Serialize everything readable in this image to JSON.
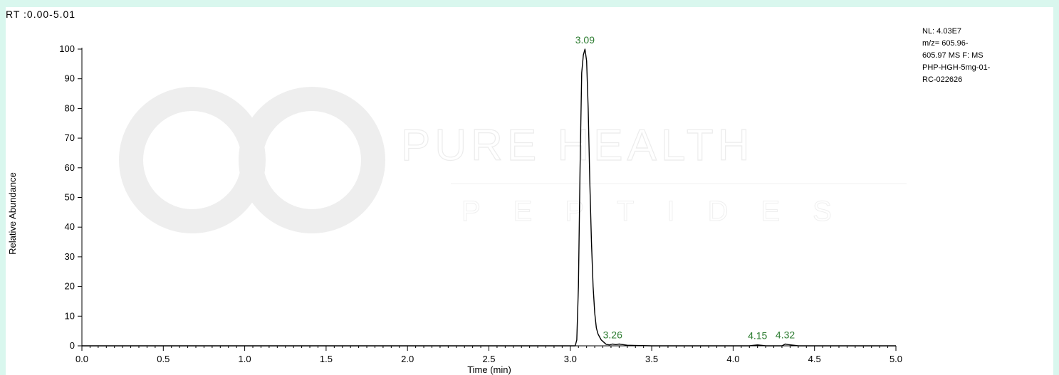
{
  "range_label": "RT :0.00-5.01",
  "info_lines": [
    "NL: 4.03E7",
    "m/z= 605.96-",
    "605.97 MS  F: MS",
    "PHP-HGH-5mg-01-",
    "RC-022626"
  ],
  "watermark": {
    "line1": "PURE HEALTH",
    "line2": "PEPTIDES"
  },
  "colors": {
    "trace": "#000000",
    "peak_label": "#2e7d32",
    "background": "#d9f7ee",
    "watermark": "#ececec"
  },
  "chart_data": {
    "type": "line",
    "xlabel": "Time (min)",
    "ylabel": "Relative Abundance",
    "xlim": [
      0.0,
      5.0
    ],
    "ylim": [
      0,
      100
    ],
    "x_ticks": [
      "0.0",
      "0.5",
      "1.0",
      "1.5",
      "2.0",
      "2.5",
      "3.0",
      "3.5",
      "4.0",
      "4.5",
      "5.0"
    ],
    "y_ticks": [
      "0",
      "10",
      "20",
      "30",
      "40",
      "50",
      "60",
      "70",
      "80",
      "90",
      "100"
    ],
    "grid": false,
    "series": [
      {
        "x": [
          0.0,
          3.0,
          3.03,
          3.04,
          3.05,
          3.06,
          3.07,
          3.08,
          3.09,
          3.1,
          3.11,
          3.12,
          3.13,
          3.14,
          3.15,
          3.16,
          3.17,
          3.18,
          3.19,
          3.2,
          3.21,
          3.22,
          3.24,
          3.26,
          3.28,
          3.3,
          3.35,
          3.5,
          4.1,
          4.15,
          4.2,
          4.3,
          4.32,
          4.34,
          4.4,
          5.0
        ],
        "y": [
          0,
          0,
          0,
          2,
          20,
          60,
          92,
          98,
          100,
          96,
          80,
          55,
          35,
          20,
          11,
          6,
          4,
          3,
          2,
          1.5,
          1,
          0.5,
          0.3,
          0.6,
          0.4,
          0.6,
          0.2,
          0,
          0,
          0.3,
          0,
          0,
          0.6,
          0.4,
          0,
          0
        ]
      }
    ],
    "peak_labels": [
      {
        "text": "3.09",
        "x": 3.09,
        "y": 100
      },
      {
        "text": "3.26",
        "x": 3.26,
        "y": 0.6
      },
      {
        "text": "4.15",
        "x": 4.15,
        "y": 0.3
      },
      {
        "text": "4.32",
        "x": 4.32,
        "y": 0.6
      }
    ]
  }
}
